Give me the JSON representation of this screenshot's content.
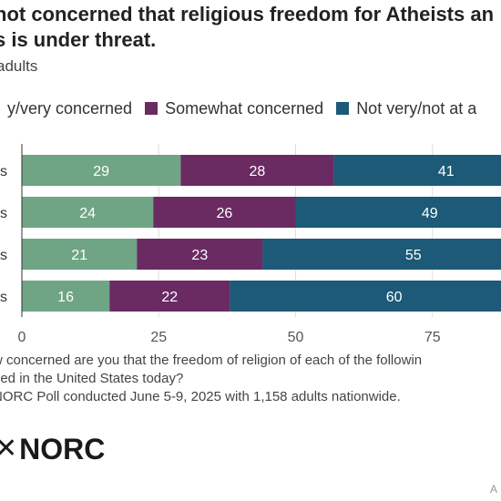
{
  "title": "not concerned that religious freedom for Atheists an\ns is under threat.",
  "subtitle": "adults",
  "legend": [
    {
      "label": "y/very concerned",
      "color": "#6fa585"
    },
    {
      "label": "Somewhat concerned",
      "color": "#6a2b63"
    },
    {
      "label": "Not very/not at a",
      "color": "#1c5a78"
    }
  ],
  "chart_data": {
    "type": "bar",
    "orientation": "horizontal",
    "stacked": true,
    "categories": [
      "s",
      "s",
      "s",
      "s"
    ],
    "series": [
      {
        "name": "y/very concerned",
        "color": "#6fa585",
        "values": [
          29,
          24,
          21,
          16
        ]
      },
      {
        "name": "Somewhat concerned",
        "color": "#6a2b63",
        "values": [
          28,
          26,
          23,
          22
        ]
      },
      {
        "name": "Not very/not at a",
        "color": "#1c5a78",
        "values": [
          41,
          49,
          55,
          60
        ]
      }
    ],
    "xlim": [
      0,
      100
    ],
    "xticks": [
      0,
      25,
      50,
      75
    ],
    "grid": true
  },
  "footnote": "w concerned are you that the freedom of religion of each of the followin\nned in the United States today?\nNORC Poll conducted June 5-9, 2025 with 1,158 adults nationwide.",
  "logo": {
    "mark": "✕",
    "text": "NORC"
  },
  "corner_mark": "A"
}
